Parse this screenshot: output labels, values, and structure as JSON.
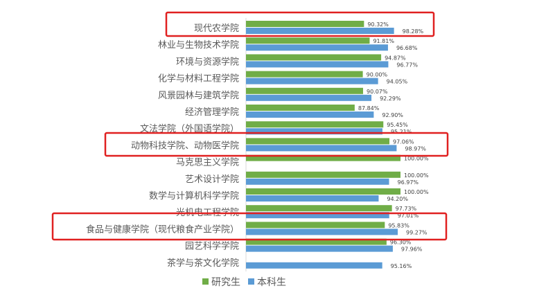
{
  "chart_data": {
    "type": "bar",
    "orientation": "horizontal",
    "categories": [
      "现代农学院",
      "林业与生物技术学院",
      "环境与资源学院",
      "化学与材料工程学院",
      "风景园林与建筑学院",
      "经济管理学院",
      "文法学院（外国语学院）",
      "动物科技学院、动物医学院",
      "马克思主义学院",
      "艺术设计学院",
      "数学与计算机科学学院",
      "光机电工程学院",
      "食品与健康学院（现代粮食产业学院）",
      "园艺科学学院",
      "茶学与茶文化学院"
    ],
    "series": [
      {
        "name": "研究生",
        "color": "#70AD47",
        "values": [
          90.32,
          91.81,
          94.87,
          90.0,
          90.07,
          87.84,
          95.45,
          97.06,
          100.0,
          100.0,
          100.0,
          97.73,
          95.83,
          96.3,
          null
        ],
        "labels": [
          "90.32%",
          "91.81%",
          "94.87%",
          "90.00%",
          "90.07%",
          "87.84%",
          "95.45%",
          "97.06%",
          "100.00%",
          "100.00%",
          "100.00%",
          "97.73%",
          "95.83%",
          "96.30%",
          ""
        ]
      },
      {
        "name": "本科生",
        "color": "#5B9BD5",
        "values": [
          98.28,
          96.68,
          96.77,
          94.05,
          92.29,
          92.9,
          95.21,
          98.97,
          null,
          96.97,
          94.2,
          97.01,
          99.27,
          97.96,
          95.16
        ],
        "labels": [
          "98.28%",
          "96.68%",
          "96.77%",
          "94.05%",
          "92.29%",
          "92.90%",
          "95.21%",
          "98.97%",
          "",
          "96.97%",
          "94.20%",
          "97.01%",
          "99.27%",
          "97.96%",
          "95.16%"
        ]
      }
    ],
    "xlim": [
      59,
      100
    ],
    "grid": false,
    "legend": "bottom",
    "highlighted_categories": [
      "现代农学院",
      "动物科技学院、动物医学院",
      "食品与健康学院（现代粮食产业学院）"
    ],
    "highlight_color": "#E02020"
  }
}
